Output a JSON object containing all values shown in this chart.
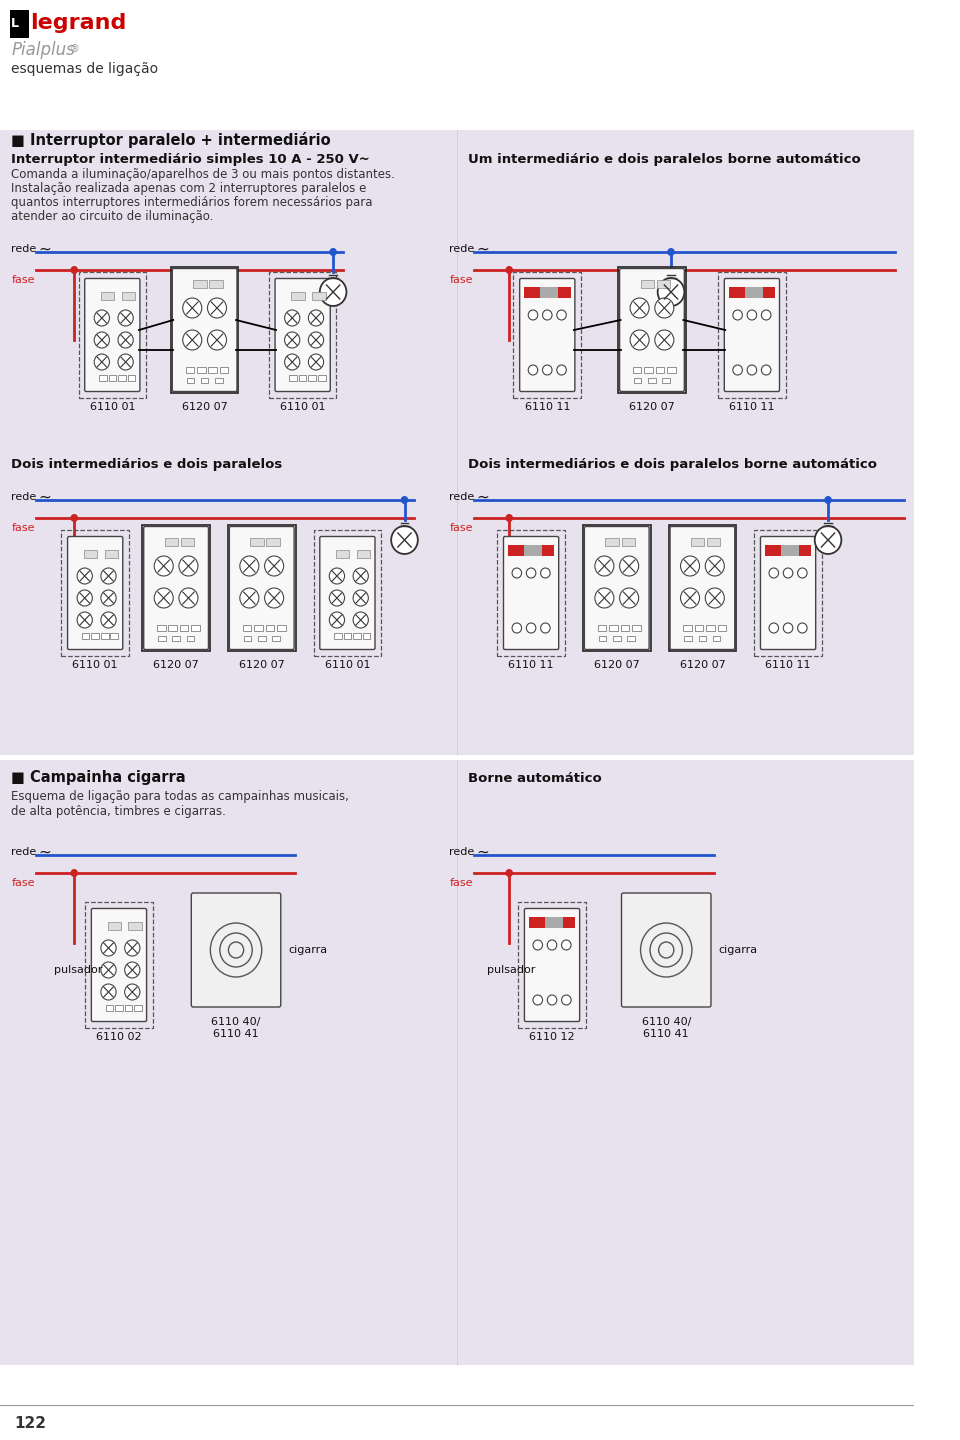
{
  "page_bg": "#ffffff",
  "section_bg": "#e8e2ee",
  "red": "#cc2222",
  "blue": "#2255cc",
  "black": "#1a1a1a",
  "legrand_red": "#cc0000",
  "text_dark": "#1a1a1a",
  "text_gray": "#888888",
  "header_title": "Pialplus®",
  "header_subtitle": "esquemas de ligação",
  "section1_title": "■ Interruptor paralelo + intermediário",
  "section1_sub1": "Interruptor intermediário simples 10 A - 250 V~",
  "section1_desc1": "Comanda a iluminação/aparelhos de 3 ou mais pontos distantes.",
  "section1_desc2": "Instalação realizada apenas com 2 interruptores paralelos e",
  "section1_desc3": "quantos interruptores intermediários forem necessários para",
  "section1_desc4": "atender ao circuito de iluminação.",
  "diag1_right_title": "Um intermediário e dois paralelos borne automático",
  "diag2_left_title": "Dois intermediários e dois paralelos",
  "diag2_right_title": "Dois intermediários e dois paralelos borne automático",
  "section2_title": "■ Campainha cigarra",
  "section2_desc1": "Esquema de ligação para todas as campainhas musicais,",
  "section2_desc2": "de alta potência, timbres e cigarras.",
  "section2_right_title": "Borne automático",
  "page_number": "122"
}
